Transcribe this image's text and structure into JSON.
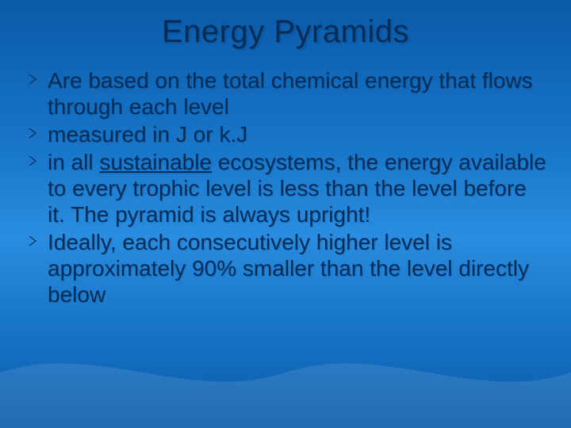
{
  "slide": {
    "background_gradient": [
      "#0a5aa8",
      "#1876c9",
      "#2a8de0",
      "#1876c9",
      "#0a5aa8"
    ],
    "title_color": "#072c56",
    "body_color": "#072c56",
    "bullet_arrow_color": "#072c56",
    "title_fontsize": 40,
    "body_fontsize": 28,
    "title": "Energy Pyramids",
    "bullets": [
      {
        "text_parts": [
          {
            "t": "Are based on the total chemical energy that flows through each level"
          }
        ]
      },
      {
        "text_parts": [
          {
            "t": "measured in J or k.J"
          }
        ]
      },
      {
        "text_parts": [
          {
            "t": "in all "
          },
          {
            "t": "sustainable",
            "underline": true
          },
          {
            "t": " ecosystems, the energy available to every trophic level is less than the level before it.  The pyramid is always upright!"
          }
        ]
      },
      {
        "text_parts": [
          {
            "t": "Ideally, each consecutively higher level is approximately 90% smaller than the level directly below"
          }
        ]
      }
    ]
  }
}
